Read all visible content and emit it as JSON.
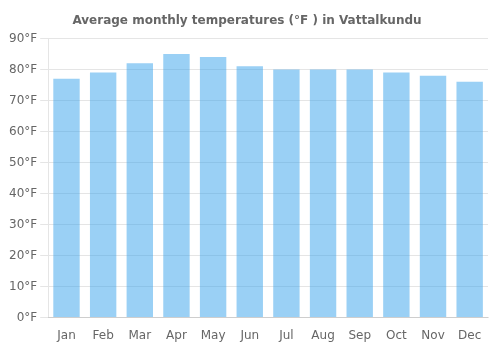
{
  "chart_data": {
    "type": "bar",
    "title": "Average monthly temperatures (°F ) in Vattalkundu",
    "categories": [
      "Jan",
      "Feb",
      "Mar",
      "Apr",
      "May",
      "Jun",
      "Jul",
      "Aug",
      "Sep",
      "Oct",
      "Nov",
      "Dec"
    ],
    "values": [
      77,
      79,
      82,
      85,
      84,
      81,
      80,
      80,
      80,
      79,
      78,
      76
    ],
    "ylim": [
      0,
      90
    ],
    "yticks": [
      {
        "value": 0,
        "label": "0°F"
      },
      {
        "value": 10,
        "label": "10°F"
      },
      {
        "value": 20,
        "label": "20°F"
      },
      {
        "value": 30,
        "label": "30°F"
      },
      {
        "value": 40,
        "label": "40°F"
      },
      {
        "value": 50,
        "label": "50°F"
      },
      {
        "value": 60,
        "label": "60°F"
      },
      {
        "value": 70,
        "label": "70°F"
      },
      {
        "value": 80,
        "label": "80°F"
      },
      {
        "value": 90,
        "label": "90°F"
      }
    ],
    "grid": true
  }
}
